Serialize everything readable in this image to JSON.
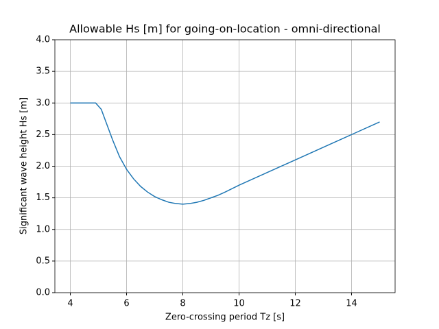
{
  "chart_data": {
    "type": "line",
    "title": "Allowable Hs [m] for going-on-location - omni-directional",
    "x_label": "Zero-crossing period Tz [s]",
    "y_label": "Significant wave height Hs [m]",
    "x": [
      4,
      4.5,
      4.9,
      5.1,
      5.25,
      5.5,
      5.75,
      6,
      6.25,
      6.5,
      6.75,
      7,
      7.25,
      7.5,
      7.75,
      8,
      8.25,
      8.5,
      8.75,
      9,
      9.25,
      9.5,
      10,
      11,
      12,
      13,
      14,
      15
    ],
    "series": [
      {
        "color": "#1f77b4",
        "values": [
          3.0,
          3.0,
          3.0,
          2.9,
          2.72,
          2.42,
          2.15,
          1.95,
          1.8,
          1.68,
          1.59,
          1.52,
          1.47,
          1.43,
          1.41,
          1.4,
          1.41,
          1.43,
          1.46,
          1.5,
          1.54,
          1.59,
          1.7,
          1.9,
          2.1,
          2.3,
          2.5,
          2.7
        ]
      }
    ],
    "xlim": [
      3.45,
      15.55
    ],
    "ylim": [
      0,
      4
    ],
    "xticks": [
      4,
      6,
      8,
      10,
      12,
      14
    ],
    "yticks": [
      {
        "value": 0,
        "label": "0.0"
      },
      {
        "value": 0.5,
        "label": "0.5"
      },
      {
        "value": 1,
        "label": "1.0"
      },
      {
        "value": 1.5,
        "label": "1.5"
      },
      {
        "value": 2,
        "label": "2.0"
      },
      {
        "value": 2.5,
        "label": "2.5"
      },
      {
        "value": 3,
        "label": "3.0"
      },
      {
        "value": 3.5,
        "label": "3.5"
      },
      {
        "value": 4,
        "label": "4.0"
      }
    ],
    "grid": true
  }
}
